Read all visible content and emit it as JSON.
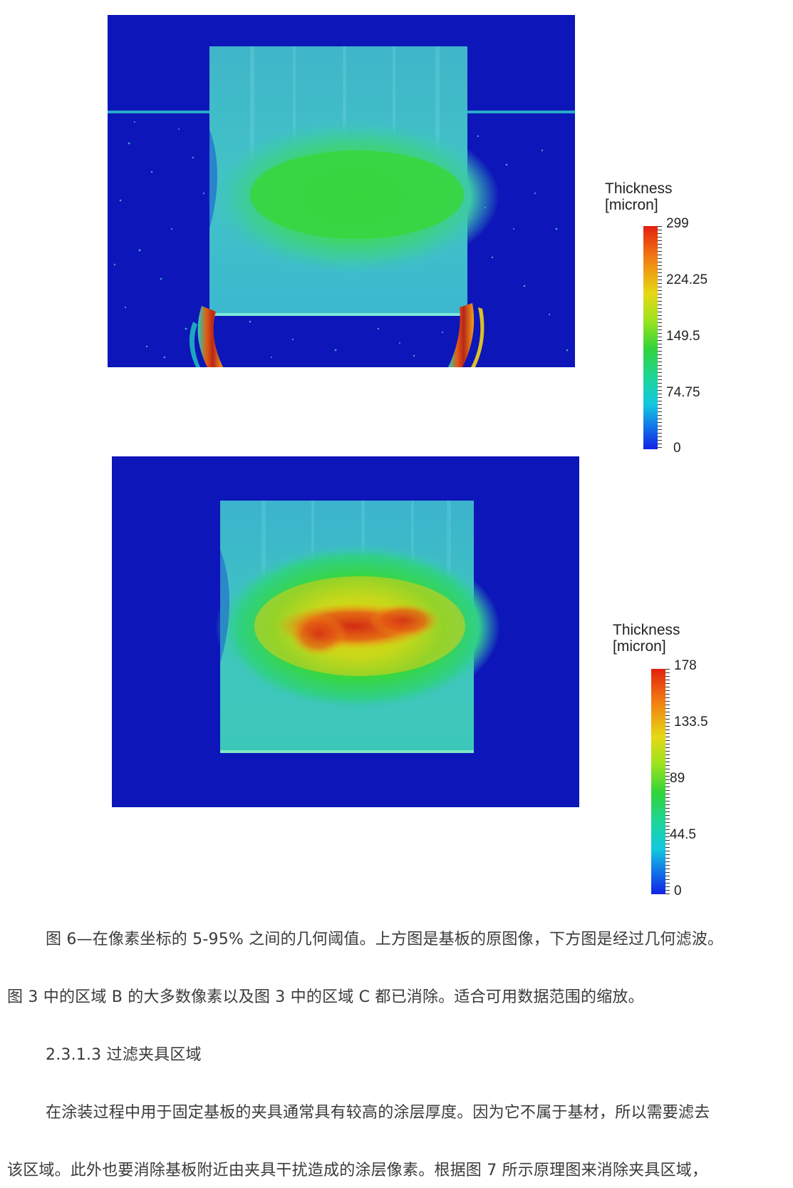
{
  "figures": {
    "top_legend": {
      "title_line1": "Thickness",
      "title_line2": "[micron]",
      "ticks": [
        "299",
        "224.25",
        "149.5",
        "74.75",
        "0"
      ],
      "max": 299,
      "min": 0
    },
    "bottom_legend": {
      "title_line1": "Thickness",
      "title_line2": "[micron]",
      "ticks": [
        "178",
        "133.5",
        "89",
        "44.5",
        "0"
      ],
      "max": 178,
      "min": 0
    }
  },
  "caption": {
    "line1": "图 6—在像素坐标的  5-95%  之间的几何阈值。上方图是基板的原图像，下方图是经过几何滤波。",
    "line2": "图 3 中的区域 B 的大多数像素以及图 3 中的区域 C 都已消除。适合可用数据范围的缩放。"
  },
  "section": {
    "heading": "2.3.1.3  过滤夹具区域",
    "para_line1": "在涂装过程中用于固定基板的夹具通常具有较高的涂层厚度。因为它不属于基材，所以需要滤去",
    "para_line2": "该区域。此外也要消除基板附近由夹具干扰造成的涂层像素。根据图 7 所示原理图来消除夹具区域，"
  },
  "colors": {
    "background_blue": "#0d16b8",
    "plate_cyan": "#3fc2c8",
    "hot_green": "#2fd63a",
    "hot_red": "#d9300f"
  }
}
